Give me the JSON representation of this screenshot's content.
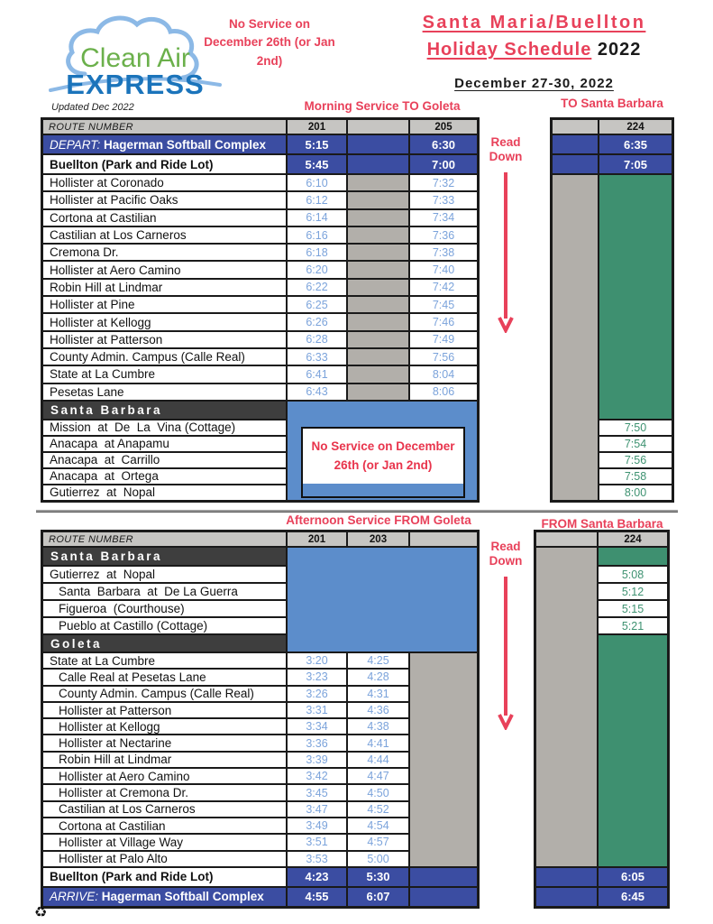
{
  "logo": {
    "top": "Clean Air",
    "bottom": "EXPRESS"
  },
  "header": {
    "note": "No Service on December 26th (or Jan 2nd)",
    "title1": "Santa Maria/Buellton",
    "title2_underlined": "Holiday Schedule",
    "title2_year": " 2022",
    "date": "December 27-30, 2022",
    "updated": "Updated Dec 2022"
  },
  "colors": {
    "band_blue": "#3B4DA2",
    "region_blue": "#5C8DCB",
    "route_green": "#3E9070",
    "spacer_gray": "#B2AFAA",
    "header_gray": "#C6C5C2",
    "accent_red": "#E8415A",
    "time_blue": "#7BA3DB",
    "time_green": "#3E9271",
    "logo_green": "#6BB04B",
    "logo_blue": "#1B74BB"
  },
  "morning": {
    "title": "Morning Service TO Goleta",
    "sb_title": "TO Santa Barbara",
    "read_down": "Read Down",
    "route_header": "ROUTE NUMBER",
    "col1": "201",
    "col2": "205",
    "sb_col": "224",
    "no_service_box": "No Service on December 26th (or Jan 2nd)",
    "rows": [
      {
        "style": "terminal",
        "prefix": "DEPART: ",
        "label": "Hagerman Softball Complex",
        "t1": "5:15",
        "t2": "6:30",
        "sb": "6:35"
      },
      {
        "style": "hub",
        "label": "Buellton (Park and Ride Lot)",
        "t1": "5:45",
        "t2": "7:00",
        "sb": "7:05"
      },
      {
        "style": "stop",
        "label": "Hollister at Coronado",
        "t1": "6:10",
        "t2": "7:32"
      },
      {
        "style": "stop",
        "label": "Hollister at Pacific Oaks",
        "t1": "6:12",
        "t2": "7:33"
      },
      {
        "style": "stop",
        "label": "Cortona at Castilian",
        "t1": "6:14",
        "t2": "7:34"
      },
      {
        "style": "stop",
        "label": "Castilian at Los Carneros",
        "t1": "6:16",
        "t2": "7:36"
      },
      {
        "style": "stop",
        "label": "Cremona Dr.",
        "t1": "6:18",
        "t2": "7:38"
      },
      {
        "style": "stop",
        "label": "Hollister at Aero Camino",
        "t1": "6:20",
        "t2": "7:40"
      },
      {
        "style": "stop",
        "label": "Robin Hill at Lindmar",
        "t1": "6:22",
        "t2": "7:42"
      },
      {
        "style": "stop",
        "label": "Hollister at Pine",
        "t1": "6:25",
        "t2": "7:45"
      },
      {
        "style": "stop",
        "label": "Hollister at Kellogg",
        "t1": "6:26",
        "t2": "7:46"
      },
      {
        "style": "stop",
        "label": "Hollister at Patterson",
        "t1": "6:28",
        "t2": "7:49"
      },
      {
        "style": "stop",
        "label": "County Admin. Campus (Calle Real)",
        "t1": "6:33",
        "t2": "7:56"
      },
      {
        "style": "stop",
        "label": "State at La Cumbre",
        "t1": "6:41",
        "t2": "8:04"
      },
      {
        "style": "stop",
        "label": "Pesetas Lane",
        "t1": "6:43",
        "t2": "8:06"
      },
      {
        "style": "section",
        "label": "Santa Barbara"
      },
      {
        "style": "sbstop",
        "label": "Mission  at  De  La  Vina (Cottage)",
        "sb": "7:50"
      },
      {
        "style": "sbstop",
        "label": "Anacapa  at Anapamu",
        "sb": "7:54"
      },
      {
        "style": "sbstop",
        "label": "Anacapa  at  Carrillo",
        "sb": "7:56"
      },
      {
        "style": "sbstop",
        "label": "Anacapa  at  Ortega",
        "sb": "7:58"
      },
      {
        "style": "sbstop",
        "label": "Gutierrez  at  Nopal",
        "sb": "8:00"
      }
    ]
  },
  "afternoon": {
    "title": "Afternoon Service FROM Goleta",
    "sb_title": "FROM Santa Barbara",
    "read_down": "Read Down",
    "route_header": "ROUTE NUMBER",
    "col1": "201",
    "col2": "203",
    "sb_col": "224",
    "rows": [
      {
        "style": "section",
        "label": "Santa Barbara"
      },
      {
        "style": "sbstop",
        "label": "Gutierrez  at  Nopal",
        "sb": "5:08"
      },
      {
        "style": "sbstop",
        "indent": true,
        "label": "Santa  Barbara  at  De La Guerra",
        "sb": "5:12"
      },
      {
        "style": "sbstop",
        "indent": true,
        "label": "Figueroa  (Courthouse)",
        "sb": "5:15"
      },
      {
        "style": "sbstop",
        "indent": true,
        "label": "Pueblo at Castillo (Cottage)",
        "sb": "5:21"
      },
      {
        "style": "section2",
        "label": "Goleta"
      },
      {
        "style": "stop",
        "label": "State at La Cumbre",
        "t1": "3:20",
        "t2": "4:25"
      },
      {
        "style": "stop",
        "indent": true,
        "label": "Calle Real at Pesetas Lane",
        "t1": "3:23",
        "t2": "4:28"
      },
      {
        "style": "stop",
        "indent": true,
        "label": "County Admin. Campus (Calle Real)",
        "t1": "3:26",
        "t2": "4:31"
      },
      {
        "style": "stop",
        "indent": true,
        "label": "Hollister at Patterson",
        "t1": "3:31",
        "t2": "4:36"
      },
      {
        "style": "stop",
        "indent": true,
        "label": "Hollister at Kellogg",
        "t1": "3:34",
        "t2": "4:38"
      },
      {
        "style": "stop",
        "indent": true,
        "label": "Hollister at Nectarine",
        "t1": "3:36",
        "t2": "4:41"
      },
      {
        "style": "stop",
        "indent": true,
        "label": "Robin Hill at Lindmar",
        "t1": "3:39",
        "t2": "4:44"
      },
      {
        "style": "stop",
        "indent": true,
        "label": "Hollister at Aero Camino",
        "t1": "3:42",
        "t2": "4:47"
      },
      {
        "style": "stop",
        "indent": true,
        "label": "Hollister at Cremona Dr.",
        "t1": "3:45",
        "t2": "4:50"
      },
      {
        "style": "stop",
        "indent": true,
        "label": "Castilian at Los Carneros",
        "t1": "3:47",
        "t2": "4:52"
      },
      {
        "style": "stop",
        "indent": true,
        "label": "Cortona at Castilian",
        "t1": "3:49",
        "t2": "4:54"
      },
      {
        "style": "stop",
        "indent": true,
        "label": "Hollister at Village Way",
        "t1": "3:51",
        "t2": "4:57"
      },
      {
        "style": "stop",
        "indent": true,
        "label": "Hollister at Palo Alto",
        "t1": "3:53",
        "t2": "5:00"
      },
      {
        "style": "hub",
        "label": "Buellton (Park and Ride Lot)",
        "t1": "4:23",
        "t2": "5:30",
        "sb": "6:05"
      },
      {
        "style": "terminal",
        "prefix": "ARRIVE: ",
        "label": "Hagerman Softball Complex",
        "t1": "4:55",
        "t2": "6:07",
        "sb": "6:45"
      }
    ]
  },
  "footer": {
    "recycle_icon": "♻"
  }
}
